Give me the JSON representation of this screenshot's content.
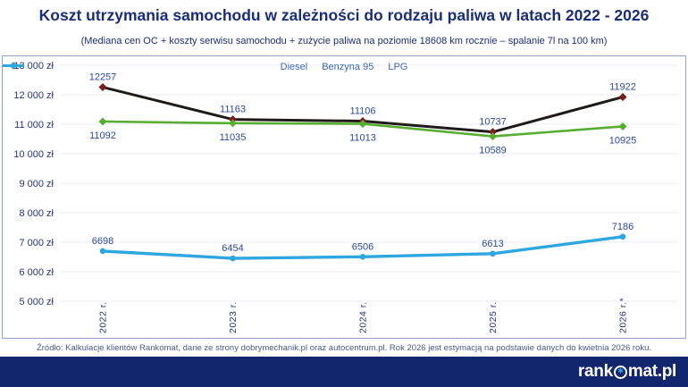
{
  "header": {
    "title": "Koszt utrzymania samochodu w zależności do rodzaju paliwa w latach 2022 - 2026",
    "subtitle": "(Mediana cen OC + koszty serwisu samochodu + zużycie paliwa na poziomie 18608 km rocznie – spalanie 7l na 100 km)"
  },
  "chart_data": {
    "type": "line",
    "categories": [
      "2022 r.",
      "2023 r.",
      "2024 r.",
      "2025 r.",
      "2026 r.*"
    ],
    "series": [
      {
        "name": "Diesel",
        "values": [
          12257,
          11163,
          11106,
          10737,
          11922
        ],
        "color": "#1f1a17",
        "marker_color": "#7a1c1c",
        "marker": "diamond",
        "stroke_width": 3,
        "label_position": "above"
      },
      {
        "name": "Benzyna 95",
        "values": [
          11092,
          11035,
          11013,
          10589,
          10925
        ],
        "color": "#56ae31",
        "marker_color": "#56ae31",
        "marker": "diamond",
        "stroke_width": 2.6,
        "label_position": "below"
      },
      {
        "name": "LPG",
        "values": [
          6698,
          6454,
          6506,
          6613,
          7186
        ],
        "color": "#2ea7e0",
        "marker_color": "#2ea7e0",
        "marker": "circle",
        "stroke_width": 3.4,
        "label_position": "above"
      }
    ],
    "ylim": [
      5000,
      13000
    ],
    "ytick_step": 1000,
    "yticks": [
      "13 000 zł",
      "12 000 zł",
      "11 000 zł",
      "10 000 zł",
      "9 000 zł",
      "8 000 zł",
      "7 000 zł",
      "6 000 zł",
      "5 000 zł"
    ],
    "xlabel": "",
    "ylabel": "",
    "grid": true,
    "legend_position": "top-center"
  },
  "footer": {
    "source": "Źródło: Kalkulacje klientów Rankomat, dane ze strony dobrymechanik.pl oraz autocentrum.pl. Rok 2026 jest estymacją na podstawie danych do kwietnia 2026 roku.",
    "brand_prefix": "rank",
    "brand_suffix": "mat.pl",
    "brand_icon": "asterisk-in-circle-icon"
  },
  "colors": {
    "title_text": "#1b2d7a",
    "axis_labels": "#24357e",
    "data_labels": "#2b4a9e",
    "legend_text": "#3a67b8",
    "gridline": "#e9ecf5",
    "chart_border": "#94a6c4",
    "footer_bar": "#12266e",
    "source_text": "#4a5a86"
  }
}
